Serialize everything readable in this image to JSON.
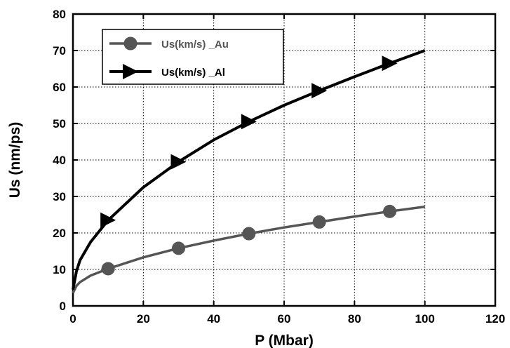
{
  "chart_data": {
    "type": "line",
    "title": "",
    "xlabel": "P (Mbar)",
    "ylabel": "Us (nm/ps)",
    "xlim": [
      0,
      120
    ],
    "ylim": [
      0,
      80
    ],
    "xticks": [
      0,
      20,
      40,
      60,
      80,
      100,
      120
    ],
    "yticks": [
      0,
      10,
      20,
      30,
      40,
      50,
      60,
      70,
      80
    ],
    "grid": true,
    "legend_position": "top-left",
    "series": [
      {
        "name": "Us(km/s) _Au",
        "color": "#555555",
        "marker": "circle",
        "x": [
          0,
          1,
          2,
          5,
          10,
          20,
          30,
          40,
          50,
          60,
          70,
          80,
          90,
          100
        ],
        "y": [
          3.5,
          5.5,
          6.5,
          8.3,
          10.2,
          13.3,
          15.8,
          17.9,
          19.8,
          21.5,
          23.0,
          24.5,
          25.9,
          27.2
        ],
        "marker_x": [
          10,
          30,
          50,
          70,
          90
        ],
        "marker_y": [
          10.2,
          15.8,
          19.8,
          23.0,
          25.9
        ]
      },
      {
        "name": "Us(km/s) _Al",
        "color": "#000000",
        "marker": "triangle",
        "x": [
          0,
          1,
          2,
          5,
          10,
          20,
          30,
          40,
          50,
          60,
          70,
          80,
          90,
          100
        ],
        "y": [
          4.5,
          9.5,
          12.5,
          17.5,
          23.5,
          32.5,
          39.5,
          45.5,
          50.5,
          55.0,
          59.0,
          62.8,
          66.5,
          70.0
        ],
        "marker_x": [
          10,
          30,
          50,
          70,
          90
        ],
        "marker_y": [
          23.5,
          39.5,
          50.5,
          59.0,
          66.5
        ]
      }
    ]
  }
}
